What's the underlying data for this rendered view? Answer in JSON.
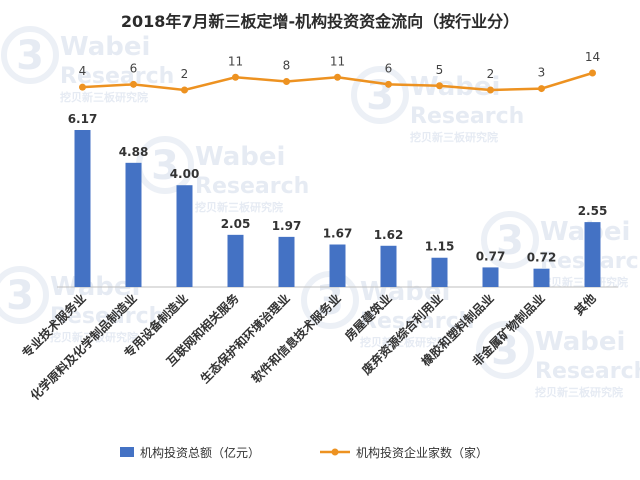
{
  "chart_data": {
    "type": "bar",
    "title": "2018年7月新三板定增-机构投资资金流向（按行业分）",
    "categories": [
      "专业技术服务业",
      "化学原料及化学制品制造业",
      "专用设备制造业",
      "互联网和相关服务",
      "生态保护和环境治理业",
      "软件和信息技术服务业",
      "房屋建筑业",
      "废弃资源综合利用业",
      "橡胶和塑料制品业",
      "非金属矿物制品业",
      "其他"
    ],
    "series": [
      {
        "name": "机构投资总额（亿元）",
        "type": "bar",
        "values": [
          6.17,
          4.88,
          4.0,
          2.05,
          1.97,
          1.67,
          1.62,
          1.15,
          0.77,
          0.72,
          2.55
        ],
        "value_labels": [
          "6.17",
          "4.88",
          "4.00",
          "2.05",
          "1.97",
          "1.67",
          "1.62",
          "1.15",
          "0.77",
          "0.72",
          "2.55"
        ],
        "color": "#4472c4"
      },
      {
        "name": "机构投资企业家数（家）",
        "type": "line",
        "values": [
          4,
          6,
          2,
          11,
          8,
          11,
          6,
          5,
          2,
          3,
          14
        ],
        "value_labels": [
          "4",
          "6",
          "2",
          "11",
          "8",
          "11",
          "6",
          "5",
          "2",
          "3",
          "14"
        ],
        "color": "#ed9221"
      }
    ],
    "legend_position": "bottom",
    "grid": false
  },
  "watermark": {
    "brand": "Wabei",
    "sub": "Research",
    "tag": "挖贝新三板研究院",
    "logo_glyph": "3",
    "color": "#c8d3e6"
  }
}
